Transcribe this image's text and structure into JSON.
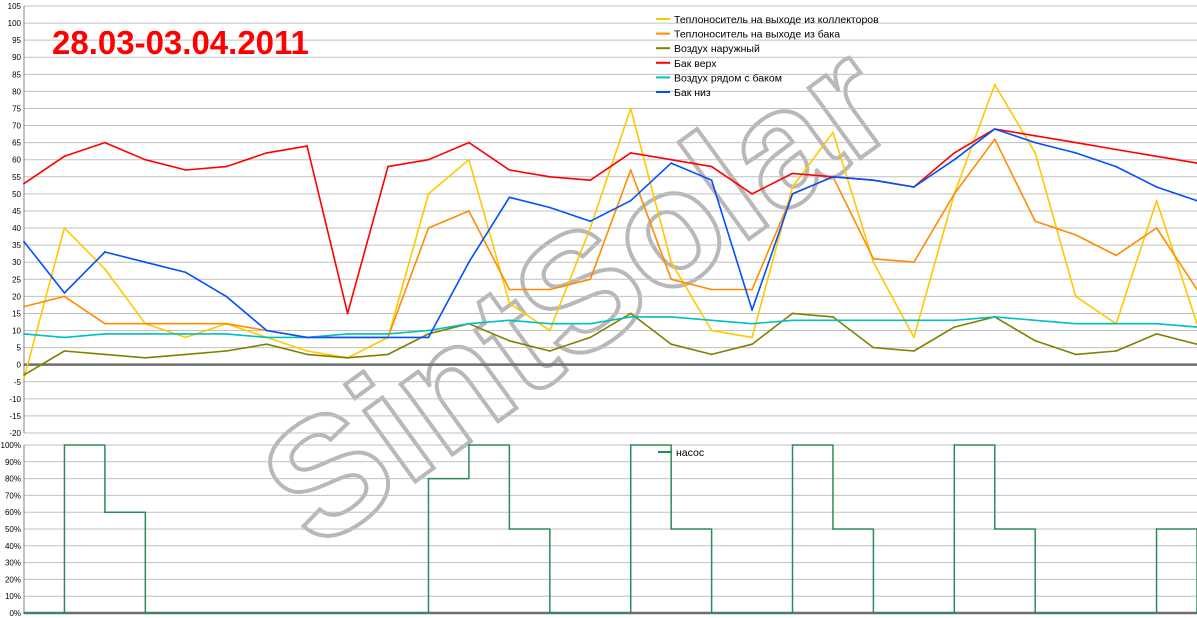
{
  "title": "28.03-03.04.2011",
  "watermark": "SintSolar",
  "colors": {
    "title": "#ff0000",
    "grid": "#c0c0c0",
    "zero_line": "#6e6e6e",
    "background": "#ffffff"
  },
  "chart_data": [
    {
      "type": "line",
      "x_points": 30,
      "ylim": [
        -20,
        105
      ],
      "yticks": [
        "105",
        "100",
        "95",
        "90",
        "85",
        "80",
        "75",
        "70",
        "65",
        "60",
        "55",
        "50",
        "45",
        "40",
        "35",
        "30",
        "25",
        "20",
        "15",
        "10",
        "5",
        "0",
        "-5",
        "-10",
        "-15",
        "-20"
      ],
      "legend_position": "top-right",
      "series": [
        {
          "name": "Теплоноситель на выходе из коллекторов",
          "color": "#ffc800",
          "values": [
            -4,
            40,
            28,
            12,
            8,
            12,
            8,
            4,
            2,
            8,
            50,
            60,
            18,
            10,
            40,
            75,
            30,
            10,
            8,
            52,
            68,
            30,
            8,
            50,
            82,
            62,
            20,
            12,
            48,
            12
          ]
        },
        {
          "name": "Теплоноситель на выходе из бака",
          "color": "#ff8c00",
          "values": [
            17,
            20,
            12,
            12,
            12,
            12,
            10,
            8,
            8,
            8,
            40,
            45,
            22,
            22,
            25,
            57,
            25,
            22,
            22,
            50,
            55,
            31,
            30,
            50,
            66,
            42,
            38,
            32,
            40,
            22
          ]
        },
        {
          "name": "Воздух наружный",
          "color": "#808000",
          "values": [
            -3,
            4,
            3,
            2,
            3,
            4,
            6,
            3,
            2,
            3,
            9,
            12,
            7,
            4,
            8,
            15,
            6,
            3,
            6,
            15,
            14,
            5,
            4,
            11,
            14,
            7,
            3,
            4,
            9,
            6
          ]
        },
        {
          "name": "Бак верх",
          "color": "#ff0000",
          "values": [
            53,
            61,
            65,
            60,
            57,
            58,
            62,
            64,
            15,
            58,
            60,
            65,
            57,
            55,
            54,
            62,
            60,
            58,
            50,
            56,
            55,
            54,
            52,
            62,
            69,
            67,
            65,
            63,
            61,
            59
          ]
        },
        {
          "name": "Воздух рядом с баком",
          "color": "#00c0c0",
          "values": [
            9,
            8,
            9,
            9,
            9,
            9,
            8,
            8,
            9,
            9,
            10,
            12,
            13,
            12,
            12,
            14,
            14,
            13,
            12,
            13,
            13,
            13,
            13,
            13,
            14,
            13,
            12,
            12,
            12,
            11
          ]
        },
        {
          "name": "Бак низ",
          "color": "#0050ff",
          "values": [
            36,
            21,
            33,
            30,
            27,
            20,
            10,
            8,
            8,
            8,
            8,
            30,
            49,
            46,
            42,
            48,
            59,
            54,
            16,
            50,
            55,
            54,
            52,
            60,
            69,
            65,
            62,
            58,
            52,
            48
          ]
        }
      ]
    },
    {
      "type": "area",
      "x_points": 30,
      "ylim": [
        0,
        100
      ],
      "yticks": [
        "100%",
        "90%",
        "80%",
        "70%",
        "60%",
        "50%",
        "40%",
        "30%",
        "20%",
        "10%",
        "0%"
      ],
      "legend_position": "top-center",
      "series": [
        {
          "name": "насос",
          "color": "#2e8b57",
          "values": [
            0,
            100,
            60,
            0,
            0,
            0,
            0,
            0,
            0,
            0,
            80,
            100,
            50,
            0,
            0,
            100,
            50,
            0,
            0,
            100,
            50,
            0,
            0,
            100,
            50,
            0,
            0,
            0,
            50,
            0
          ]
        }
      ]
    }
  ]
}
